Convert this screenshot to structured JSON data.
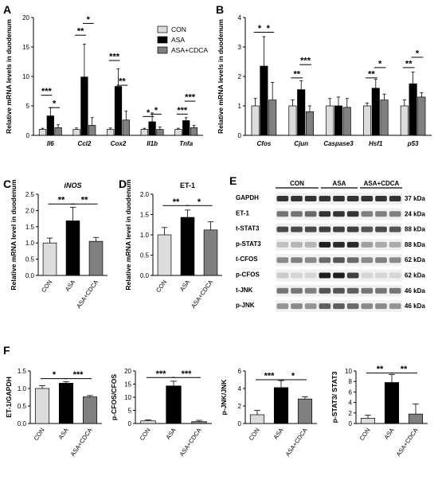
{
  "colors": {
    "CON": "#dcdcdc",
    "ASA": "#000000",
    "ASA+CDCA": "#808080"
  },
  "legend": [
    "CON",
    "ASA",
    "ASA+CDCA"
  ],
  "blot": {
    "group_labels": [
      "CON",
      "ASA",
      "ASA+CDCA"
    ],
    "proteins": [
      "GAPDH",
      "ET-1",
      "t-STAT3",
      "p-STAT3",
      "t-CFOS",
      "p-CFOS",
      "t-JNK",
      "p-JNK"
    ],
    "sizes": [
      "37 kDa",
      "24 kDa",
      "88 kDa",
      "88 kDa",
      "62 kDa",
      "62 kDa",
      "46 kDa",
      "46 kDa"
    ]
  },
  "chart_data": [
    {
      "panel": "A",
      "type": "bar",
      "ylabel": "Relative mRNA levels in duodenum",
      "ylim": [
        0,
        20
      ],
      "yticks": [
        0,
        5,
        10,
        15,
        20
      ],
      "categories": [
        "Il6",
        "Ccl2",
        "Cox2",
        "Il1b",
        "Tnfa"
      ],
      "series": [
        {
          "name": "CON",
          "values": [
            1.0,
            1.0,
            1.0,
            1.0,
            1.0
          ],
          "errors": [
            0.2,
            0.25,
            0.25,
            0.2,
            0.2
          ]
        },
        {
          "name": "ASA",
          "values": [
            3.3,
            9.9,
            8.3,
            2.3,
            2.5
          ],
          "errors": [
            1.4,
            5.6,
            3.0,
            1.5,
            0.5
          ]
        },
        {
          "name": "ASA+CDCA",
          "values": [
            1.3,
            1.7,
            2.6,
            1.0,
            1.3
          ],
          "errors": [
            0.5,
            1.3,
            1.5,
            0.4,
            0.4
          ]
        }
      ],
      "significance": [
        {
          "category": 0,
          "from": 0,
          "to": 1,
          "y": 6.8,
          "label": "***"
        },
        {
          "category": 0,
          "from": 1,
          "to": 2,
          "y": 4.7,
          "label": "*"
        },
        {
          "category": 1,
          "from": 0,
          "to": 1,
          "y": 17.0,
          "label": "**"
        },
        {
          "category": 1,
          "from": 1,
          "to": 2,
          "y": 19.0,
          "label": "*"
        },
        {
          "category": 2,
          "from": 0,
          "to": 1,
          "y": 12.7,
          "label": "***"
        },
        {
          "category": 2,
          "from": 1,
          "to": 2,
          "y": 8.5,
          "label": "**"
        },
        {
          "category": 3,
          "from": 0,
          "to": 1,
          "y": 3.2,
          "label": "*"
        },
        {
          "category": 3,
          "from": 1,
          "to": 2,
          "y": 3.6,
          "label": "*"
        },
        {
          "category": 4,
          "from": 0,
          "to": 1,
          "y": 3.6,
          "label": "***"
        },
        {
          "category": 4,
          "from": 1,
          "to": 2,
          "y": 5.8,
          "label": "***"
        }
      ]
    },
    {
      "panel": "B",
      "type": "bar",
      "ylabel": "Relative mRNA levels in duodenum",
      "ylim": [
        0,
        4
      ],
      "yticks": [
        0,
        1,
        2,
        3,
        4
      ],
      "categories": [
        "Cfos",
        "Cjun",
        "Caspase3",
        "Hsf1",
        "p53"
      ],
      "series": [
        {
          "name": "CON",
          "values": [
            1.0,
            1.0,
            1.0,
            1.0,
            1.0
          ],
          "errors": [
            0.25,
            0.2,
            0.25,
            0.1,
            0.2
          ]
        },
        {
          "name": "ASA",
          "values": [
            2.35,
            1.55,
            1.0,
            1.6,
            1.75
          ],
          "errors": [
            1.0,
            0.3,
            0.3,
            0.3,
            0.4
          ]
        },
        {
          "name": "ASA+CDCA",
          "values": [
            1.2,
            0.8,
            0.95,
            1.2,
            1.3
          ],
          "errors": [
            0.6,
            0.2,
            0.3,
            0.2,
            0.15
          ]
        }
      ],
      "significance": [
        {
          "category": 0,
          "from": 0,
          "to": 1,
          "y": 3.5,
          "label": "*"
        },
        {
          "category": 0,
          "from": 1,
          "to": 2,
          "y": 3.5,
          "label": "*"
        },
        {
          "category": 1,
          "from": 0,
          "to": 1,
          "y": 1.95,
          "label": "**"
        },
        {
          "category": 1,
          "from": 1,
          "to": 2,
          "y": 2.4,
          "label": "***"
        },
        {
          "category": 3,
          "from": 0,
          "to": 1,
          "y": 1.95,
          "label": "**"
        },
        {
          "category": 3,
          "from": 1,
          "to": 2,
          "y": 2.3,
          "label": "*"
        },
        {
          "category": 4,
          "from": 0,
          "to": 1,
          "y": 2.3,
          "label": "**"
        },
        {
          "category": 4,
          "from": 1,
          "to": 2,
          "y": 2.65,
          "label": "*"
        }
      ]
    },
    {
      "panel": "C",
      "type": "bar",
      "title": "iNOS",
      "ylabel": "Relative mRNA level in duodenum",
      "ylim": [
        0,
        2.5
      ],
      "yticks": [
        0.0,
        0.5,
        1.0,
        1.5,
        2.0,
        2.5
      ],
      "categories": [
        "CON",
        "ASA",
        "ASA+CDCA"
      ],
      "values": [
        1.0,
        1.68,
        1.05
      ],
      "errors": [
        0.15,
        0.42,
        0.12
      ],
      "significance": [
        {
          "from": 0,
          "to": 1,
          "y": 2.2,
          "label": "**"
        },
        {
          "from": 1,
          "to": 2,
          "y": 2.2,
          "label": "**"
        }
      ]
    },
    {
      "panel": "D",
      "type": "bar",
      "title": "ET-1",
      "ylabel": "Relative mRNA level in duodenum",
      "ylim": [
        0,
        2.0
      ],
      "yticks": [
        0.0,
        0.5,
        1.0,
        1.5,
        2.0
      ],
      "categories": [
        "CON",
        "ASA",
        "ASA+CDCA"
      ],
      "values": [
        1.0,
        1.43,
        1.12
      ],
      "errors": [
        0.18,
        0.18,
        0.2
      ],
      "significance": [
        {
          "from": 0,
          "to": 1,
          "y": 1.72,
          "label": "**"
        },
        {
          "from": 1,
          "to": 2,
          "y": 1.72,
          "label": "*"
        }
      ]
    },
    {
      "panel": "F1",
      "type": "bar",
      "ylabel": "ET-1/GAPDH",
      "ylim": [
        0,
        1.5
      ],
      "yticks": [
        0.0,
        0.5,
        1.0,
        1.5
      ],
      "categories": [
        "CON",
        "ASA",
        "ASA+CDCA"
      ],
      "values": [
        1.0,
        1.15,
        0.76
      ],
      "errors": [
        0.08,
        0.04,
        0.04
      ],
      "significance": [
        {
          "from": 0,
          "to": 1,
          "y": 1.28,
          "label": "*"
        },
        {
          "from": 1,
          "to": 2,
          "y": 1.28,
          "label": "***"
        }
      ]
    },
    {
      "panel": "F2",
      "type": "bar",
      "ylabel": "p-CFOS/CFOS",
      "ylim": [
        0,
        20
      ],
      "yticks": [
        0,
        5,
        10,
        15,
        20
      ],
      "categories": [
        "CON",
        "ASA",
        "ASA+CDCA"
      ],
      "values": [
        1.0,
        14.3,
        0.7
      ],
      "errors": [
        0.4,
        1.8,
        0.5
      ],
      "significance": [
        {
          "from": 0,
          "to": 1,
          "y": 17.5,
          "label": "***"
        },
        {
          "from": 1,
          "to": 2,
          "y": 17.5,
          "label": "***"
        }
      ]
    },
    {
      "panel": "F3",
      "type": "bar",
      "ylabel": "p-JNK/JNK",
      "ylim": [
        0,
        6
      ],
      "yticks": [
        0,
        2,
        4,
        6
      ],
      "categories": [
        "CON",
        "ASA",
        "ASA+CDCA"
      ],
      "values": [
        1.0,
        4.1,
        2.8
      ],
      "errors": [
        0.5,
        0.8,
        0.25
      ],
      "significance": [
        {
          "from": 0,
          "to": 1,
          "y": 5.0,
          "label": "***"
        },
        {
          "from": 1,
          "to": 2,
          "y": 5.0,
          "label": "*"
        }
      ]
    },
    {
      "panel": "F4",
      "type": "bar",
      "ylabel": "p-STAT3/ STAT3",
      "ylim": [
        0,
        10
      ],
      "yticks": [
        0,
        2,
        4,
        6,
        8,
        10
      ],
      "categories": [
        "CON",
        "ASA",
        "ASA+CDCA"
      ],
      "values": [
        1.0,
        7.8,
        1.8
      ],
      "errors": [
        0.6,
        1.5,
        1.9
      ],
      "significance": [
        {
          "from": 0,
          "to": 1,
          "y": 9.6,
          "label": "**"
        },
        {
          "from": 1,
          "to": 2,
          "y": 9.6,
          "label": "**"
        }
      ]
    }
  ]
}
